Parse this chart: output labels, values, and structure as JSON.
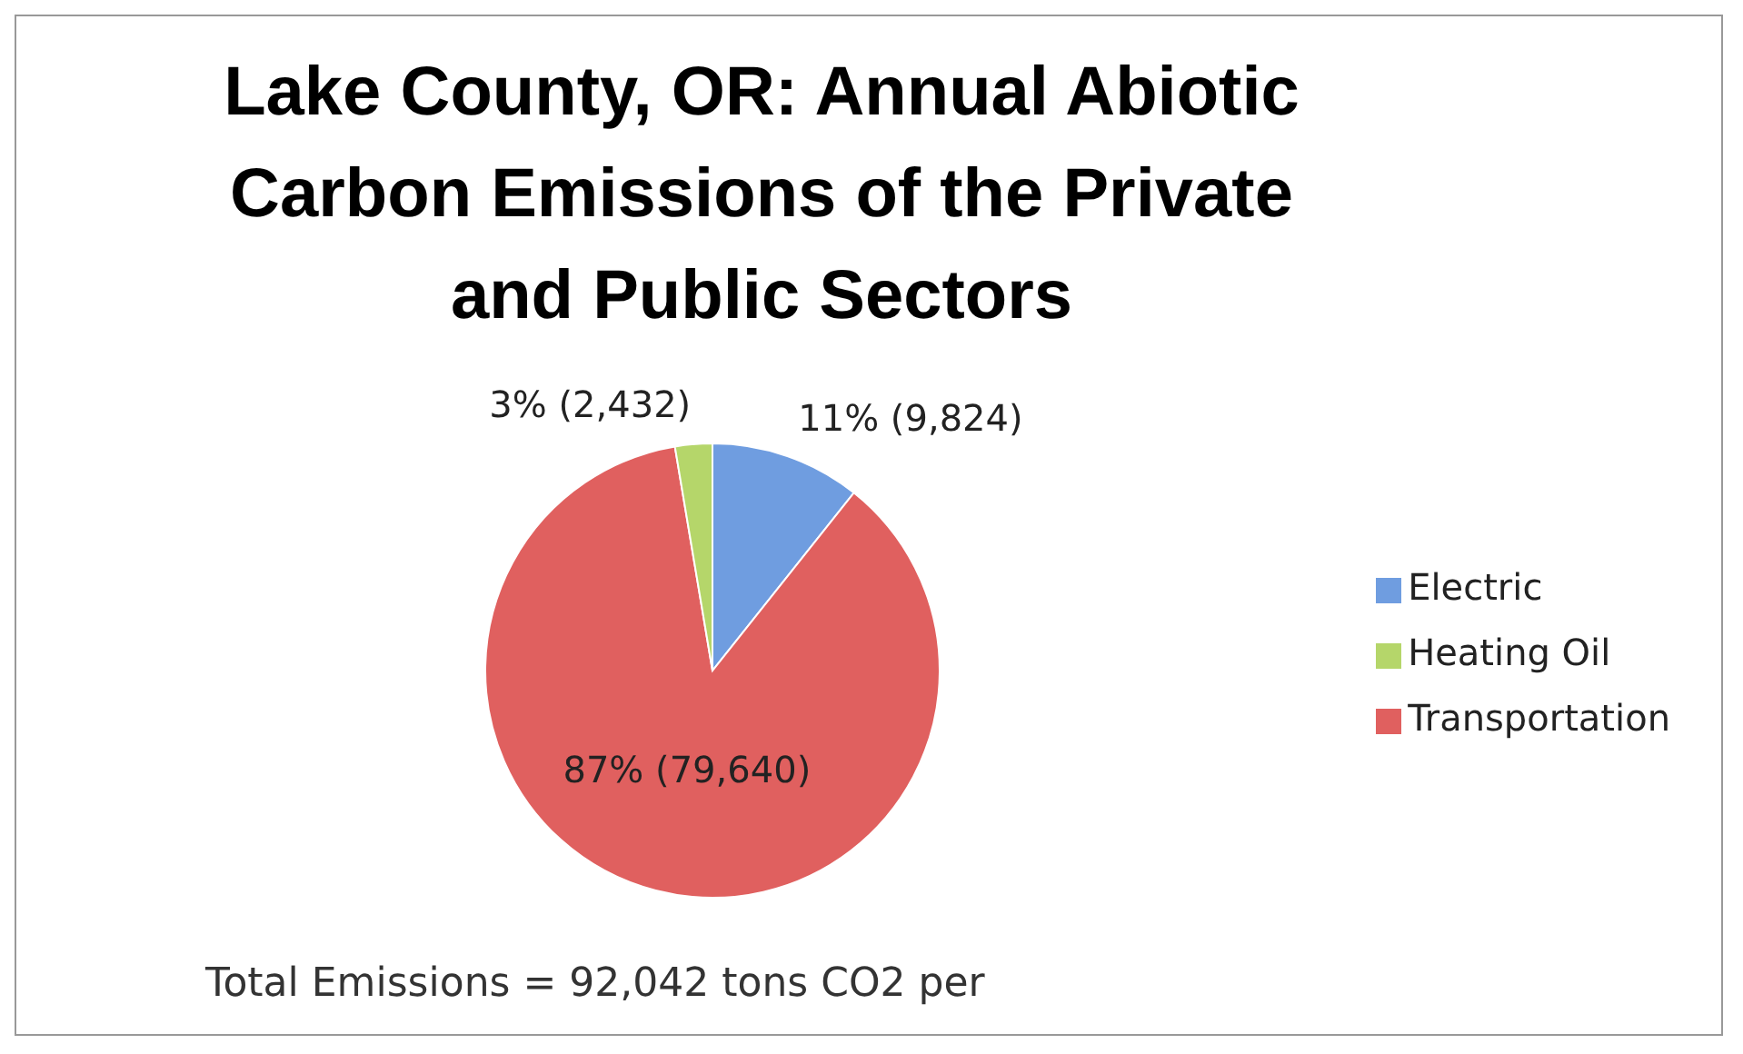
{
  "chart_data": {
    "type": "pie",
    "title": "Lake County, OR: Annual Abiotic Carbon Emissions of the Private and Public Sectors",
    "categories": [
      "Electric",
      "Transportation",
      "Heating Oil"
    ],
    "values": [
      9824,
      79640,
      2432
    ],
    "colors": [
      "#6f9de0",
      "#e0605f",
      "#b5d66a"
    ],
    "value_labels": [
      "11% (9,824)",
      "87% (79,640)",
      "3% (2,432)"
    ],
    "legend": "right",
    "annotations": [
      "Total Emissions = 92,042 tons CO2 per"
    ]
  }
}
